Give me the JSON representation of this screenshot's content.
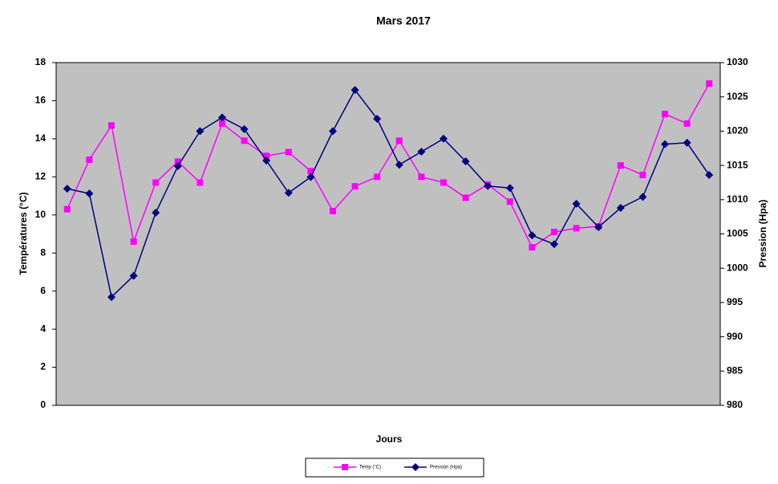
{
  "chart_data": {
    "type": "line",
    "title": "Mars 2017",
    "x_label": "Jours",
    "y_label": "Températures (°C)",
    "y2_label": "Pression (Hpa)",
    "categories": [
      null,
      null,
      null,
      null,
      null,
      null,
      null,
      null,
      null,
      null,
      null,
      null,
      null,
      null,
      null,
      null,
      null,
      null,
      null,
      null,
      null,
      null,
      null,
      null,
      null,
      null,
      null,
      null,
      null,
      null
    ],
    "series": [
      {
        "name": "Temp (°C)",
        "color": "#ff00ff",
        "marker": "square",
        "values": [
          10.3,
          12.9,
          14.7,
          8.6,
          11.7,
          12.8,
          11.7,
          14.8,
          13.9,
          13.1,
          13.3,
          12.3,
          10.2,
          11.5,
          12.0,
          13.9,
          12.0,
          11.7,
          10.9,
          11.6,
          10.7,
          8.3,
          9.1,
          9.3,
          9.4,
          12.6,
          12.1,
          15.3,
          14.8,
          16.9
        ]
      },
      {
        "name": "Pression (Hpa)",
        "color": "#000080",
        "marker": "diamond",
        "axis": "y2",
        "values": [
          1011.6,
          1010.9,
          995.8,
          998.9,
          1008.1,
          1014.9,
          1020.0,
          1022.0,
          1020.3,
          1015.7,
          1011.0,
          1013.3,
          1020.0,
          1026.0,
          1021.8,
          1015.1,
          1017.0,
          1018.9,
          1015.6,
          1012.0,
          1011.7,
          1004.8,
          1003.5,
          1009.4,
          1006.0,
          1008.8,
          1010.4,
          1018.1,
          1018.3,
          1013.6
        ]
      }
    ],
    "ylim": [
      0,
      18
    ],
    "yticks": [
      0,
      2,
      4,
      6,
      8,
      10,
      12,
      14,
      16,
      18
    ],
    "y2lim": [
      980,
      1030
    ],
    "y2ticks": [
      980,
      985,
      990,
      995,
      1000,
      1005,
      1010,
      1015,
      1020,
      1025,
      1030
    ],
    "plot_background": "#c0c0c0",
    "grid": false
  }
}
